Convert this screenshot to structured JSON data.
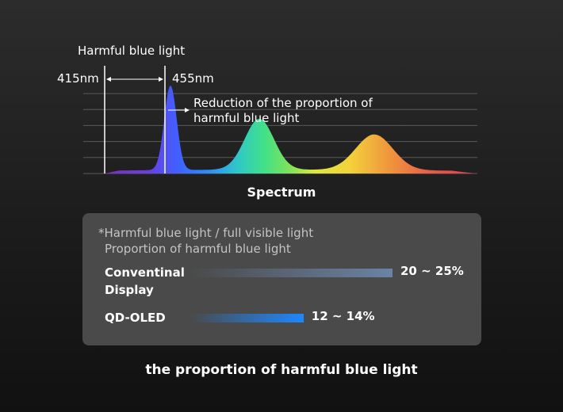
{
  "chart_data": [
    {
      "type": "area",
      "title": "Harmful blue light",
      "xlabel": "Spectrum",
      "annotation": "Reduction of the proportion of harmful blue light",
      "range_labels": [
        "415nm",
        "455nm"
      ],
      "grid": true,
      "peaks": [
        {
          "relative_intensity": 1.0
        },
        {
          "relative_intensity": 0.6
        },
        {
          "relative_intensity": 0.42
        }
      ]
    },
    {
      "type": "bar",
      "orientation": "horizontal",
      "title": "the proportion of harmful blue light",
      "note_lines": [
        "*Harmful blue light / full visible light",
        "Proportion of harmful blue light"
      ],
      "categories": [
        "Conventinal Display",
        "QD-OLED"
      ],
      "value_labels": [
        "20 ~ 25%",
        "12 ~ 14%"
      ],
      "range_min": [
        20,
        12
      ],
      "range_max": [
        25,
        14
      ],
      "xlim": [
        0,
        25
      ],
      "colors": [
        "#6b83a6",
        "#1e87ff"
      ]
    }
  ]
}
